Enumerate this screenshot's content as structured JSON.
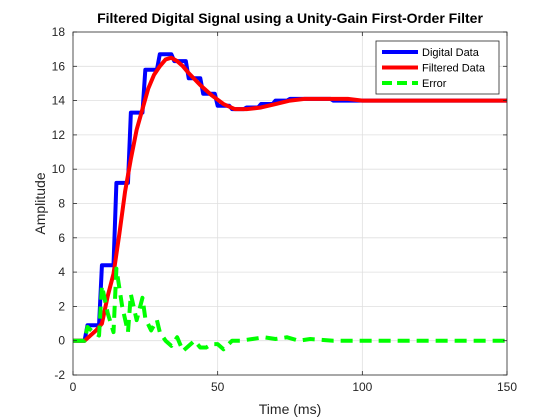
{
  "chart_data": {
    "type": "line",
    "title": "Filtered Digital Signal using a Unity-Gain First-Order Filter",
    "xlabel": "Time (ms)",
    "ylabel": "Amplitude",
    "xlim": [
      0,
      150
    ],
    "ylim": [
      -2,
      18
    ],
    "xticks": [
      0,
      50,
      100,
      150
    ],
    "yticks": [
      -2,
      0,
      2,
      4,
      6,
      8,
      10,
      12,
      14,
      16,
      18
    ],
    "grid": true,
    "legend_position": "top-right",
    "series": [
      {
        "name": "Digital Data",
        "color": "#0000ff",
        "style": "solid",
        "step": true,
        "x": [
          0,
          4,
          5,
          9,
          10,
          14,
          15,
          19,
          20,
          24,
          25,
          29,
          30,
          34,
          35,
          39,
          40,
          44,
          45,
          49,
          50,
          54,
          55,
          59,
          60,
          64,
          65,
          69,
          70,
          74,
          75,
          79,
          80,
          84,
          85,
          89,
          90,
          94,
          95,
          99,
          100,
          150
        ],
        "y": [
          0,
          0,
          0.9,
          0.9,
          4.4,
          4.4,
          9.2,
          9.2,
          13.3,
          13.3,
          15.8,
          15.8,
          16.7,
          16.7,
          16.3,
          16.3,
          15.3,
          15.3,
          14.4,
          14.4,
          13.7,
          13.7,
          13.5,
          13.5,
          13.6,
          13.6,
          13.8,
          13.8,
          14.0,
          14.0,
          14.1,
          14.1,
          14.1,
          14.1,
          14.1,
          14.1,
          14.0,
          14.0,
          14.0,
          14.0,
          14.0,
          14.0
        ]
      },
      {
        "name": "Filtered Data",
        "color": "#ff0000",
        "style": "solid",
        "x": [
          0,
          4,
          6,
          8,
          10,
          12,
          14,
          16,
          18,
          20,
          22,
          24,
          26,
          28,
          30,
          32,
          34,
          36,
          38,
          40,
          44,
          48,
          52,
          56,
          60,
          65,
          70,
          75,
          80,
          85,
          90,
          95,
          100,
          110,
          120,
          130,
          140,
          150
        ],
        "y": [
          0,
          0,
          0.3,
          0.6,
          1.0,
          2.6,
          3.9,
          6.2,
          8.7,
          10.6,
          12.3,
          13.5,
          14.7,
          15.5,
          16.0,
          16.4,
          16.5,
          16.3,
          16.0,
          15.6,
          14.9,
          14.3,
          13.8,
          13.5,
          13.5,
          13.6,
          13.8,
          14.0,
          14.1,
          14.1,
          14.1,
          14.1,
          14.0,
          14.0,
          14.0,
          14.0,
          14.0,
          14.0
        ]
      },
      {
        "name": "Error",
        "color": "#00ff00",
        "style": "dashed",
        "x": [
          0,
          4,
          5,
          7,
          9,
          10,
          12,
          14,
          15,
          17,
          19,
          20,
          22,
          24,
          25,
          27,
          29,
          30,
          32,
          34,
          36,
          38,
          40,
          42,
          44,
          46,
          48,
          50,
          52,
          55,
          58,
          62,
          66,
          70,
          74,
          78,
          82,
          90,
          100,
          150
        ],
        "y": [
          0,
          0,
          0.8,
          0.5,
          0.3,
          3.2,
          1.6,
          0.5,
          4.2,
          2.0,
          0.5,
          2.7,
          1.2,
          2.5,
          1.3,
          0.6,
          1.2,
          0.5,
          0.0,
          -0.3,
          0.2,
          -0.6,
          -0.3,
          0.0,
          -0.4,
          -0.4,
          -0.2,
          -0.2,
          -0.5,
          0.0,
          0.0,
          0.1,
          0.2,
          0.1,
          0.2,
          0.0,
          0.1,
          0.0,
          0.0,
          0.0
        ]
      }
    ]
  }
}
